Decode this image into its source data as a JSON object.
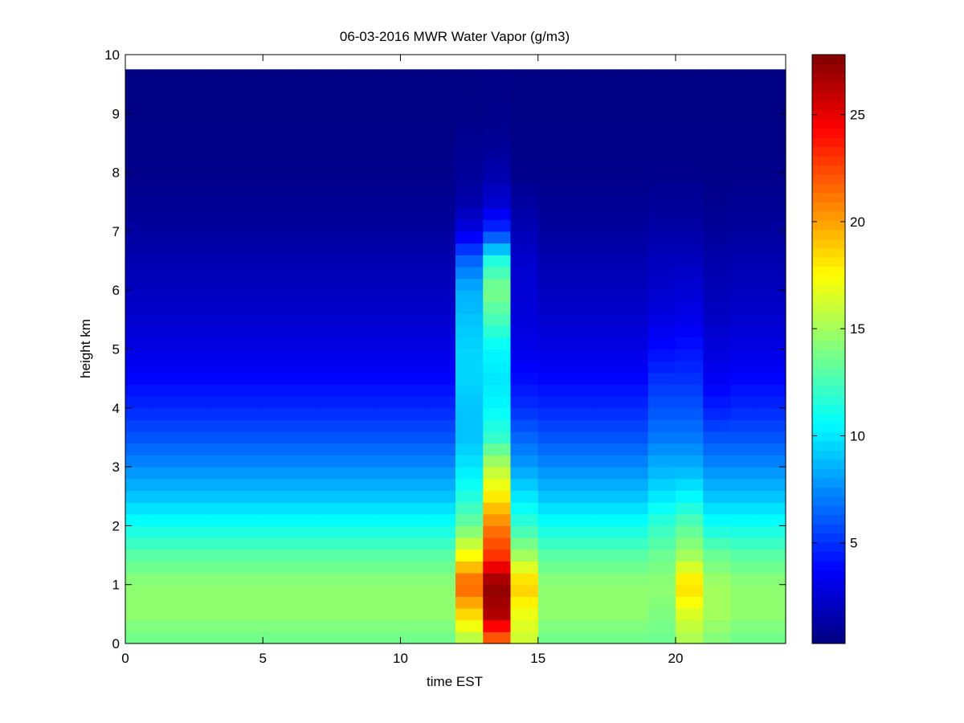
{
  "chart_data": {
    "type": "heatmap",
    "title": "06-03-2016 MWR Water Vapor (g/m3)",
    "xlabel": "time EST",
    "ylabel": "height km",
    "xlim": [
      0,
      24
    ],
    "ylim": [
      0,
      10
    ],
    "xticks": [
      "0",
      "5",
      "10",
      "15",
      "20"
    ],
    "yticks": [
      "0",
      "1",
      "2",
      "3",
      "4",
      "5",
      "6",
      "7",
      "8",
      "9",
      "10"
    ],
    "colormap": "jet",
    "colorbar": {
      "range": [
        0.3,
        27.8
      ],
      "ticks": [
        "5",
        "10",
        "15",
        "20",
        "25"
      ]
    },
    "grid": false,
    "time_bins_est": [
      0.5,
      1.5,
      2.5,
      3.5,
      4.5,
      5.5,
      6.5,
      7.5,
      8.5,
      9.5,
      10.5,
      11.5,
      12.5,
      13.5,
      14.5,
      15.5,
      16.5,
      17.5,
      18.5,
      19.5,
      20.5,
      21.5,
      22.5,
      23.5
    ],
    "data_time_range": [
      0,
      23.5
    ],
    "data_height_range": [
      0,
      9.75
    ],
    "height_bins_km": [
      0.1,
      0.3,
      0.5,
      0.7,
      0.9,
      1.1,
      1.3,
      1.5,
      1.7,
      1.9,
      2.1,
      2.3,
      2.5,
      2.7,
      2.9,
      3.1,
      3.3,
      3.5,
      3.7,
      3.9,
      4.1,
      4.3,
      4.5,
      4.7,
      4.9,
      5.1,
      5.3,
      5.5,
      5.7,
      5.9,
      6.1,
      6.3,
      6.5,
      6.7,
      6.9,
      7.1,
      7.3,
      7.5,
      7.7,
      7.9,
      8.1,
      8.3,
      8.5,
      8.7,
      8.9,
      9.1,
      9.3,
      9.5,
      9.7
    ],
    "profile_heights_km": [
      0,
      0.5,
      1,
      1.5,
      2,
      2.5,
      3,
      3.5,
      4,
      4.5,
      5,
      5.5,
      6,
      6.5,
      7,
      7.5,
      8,
      8.5,
      9,
      9.75
    ],
    "profiles": {
      "base": [
        13.5,
        14.5,
        14.5,
        13.0,
        11.0,
        9.0,
        7.5,
        6.0,
        4.8,
        3.8,
        3.0,
        2.5,
        2.0,
        1.6,
        1.2,
        0.8,
        0.6,
        0.5,
        0.45,
        0.4
      ],
      "t12": [
        15.0,
        18.5,
        22.0,
        17.5,
        13.5,
        11.5,
        10.0,
        9.0,
        9.0,
        9.5,
        9.5,
        9.0,
        8.5,
        6.5,
        3.0,
        1.5,
        1.0,
        0.8,
        0.5,
        0.4
      ],
      "t13": [
        21.0,
        26.5,
        27.5,
        23.0,
        21.0,
        18.0,
        15.5,
        12.0,
        10.5,
        10.0,
        10.5,
        12.5,
        14.0,
        11.5,
        5.0,
        2.5,
        1.5,
        0.9,
        0.6,
        0.4
      ],
      "t14": [
        16.0,
        17.0,
        19.0,
        15.0,
        12.0,
        10.0,
        8.0,
        6.5,
        5.0,
        4.0,
        3.2,
        2.8,
        2.6,
        2.4,
        1.8,
        1.2,
        0.6,
        0.5,
        0.45,
        0.4
      ],
      "t20": [
        15.0,
        16.5,
        18.5,
        15.0,
        13.0,
        10.5,
        8.5,
        7.0,
        6.0,
        5.0,
        4.2,
        3.2,
        2.6,
        2.0,
        1.4,
        1.0,
        0.6,
        0.5,
        0.45,
        0.4
      ],
      "t19": [
        13.5,
        14.0,
        14.5,
        13.5,
        12.0,
        10.0,
        8.5,
        7.0,
        6.0,
        5.0,
        4.0,
        3.0,
        2.4,
        2.0,
        1.4,
        1.0,
        0.6,
        0.5,
        0.45,
        0.4
      ],
      "t21": [
        14.0,
        15.0,
        15.0,
        13.5,
        11.0,
        9.0,
        7.5,
        6.0,
        4.5,
        3.5,
        2.8,
        2.2,
        1.8,
        1.5,
        1.0,
        0.7,
        0.55,
        0.5,
        0.45,
        0.4
      ]
    }
  }
}
